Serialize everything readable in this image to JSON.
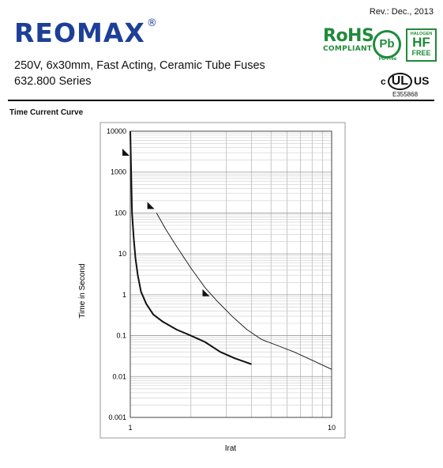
{
  "header": {
    "revision": "Rev.: Dec., 2013",
    "brand": "REOMAX",
    "brand_mark": "®",
    "title_line1": "250V, 6x30mm, Fast Acting, Ceramic Tube Fuses",
    "title_line2": "632.800   Series",
    "section_title": "Time Current Curve"
  },
  "certifications": {
    "rohs": "RoHS",
    "rohs_sub": "COMPLIANT",
    "pb": "Pb",
    "pb_sub": "Pb-Free",
    "hf_top": "HALOGEN",
    "hf_mid": "HF",
    "hf_bot": "FREE",
    "ul_c": "c",
    "ul_mark": "UL",
    "ul_us": "US",
    "ul_file": "E355868",
    "color": "#1f8a3a"
  },
  "chart_data": {
    "type": "line",
    "xscale": "log",
    "yscale": "log",
    "xlim": [
      1,
      10
    ],
    "ylim": [
      0.001,
      10000
    ],
    "xlabel": "Irat",
    "ylabel": "Time in Second",
    "x_ticks": [
      "1",
      "10"
    ],
    "y_ticks": [
      "0.001",
      "0.01",
      "0.1",
      "1",
      "10",
      "100",
      "1000",
      "10000"
    ],
    "grid": true,
    "series": [
      {
        "style": "thick",
        "x": [
          1.0,
          1.01,
          1.02,
          1.04,
          1.06,
          1.09,
          1.13,
          1.2,
          1.3,
          1.45,
          1.7,
          2.0,
          2.35,
          2.8,
          3.3,
          4.0
        ],
        "y": [
          10000,
          1000,
          100,
          25,
          8,
          3,
          1.2,
          0.6,
          0.33,
          0.22,
          0.14,
          0.1,
          0.07,
          0.04,
          0.028,
          0.02
        ]
      },
      {
        "style": "thin",
        "x": [
          1.35,
          1.5,
          1.7,
          2.0,
          2.35,
          2.7,
          3.2,
          3.8,
          4.5,
          5.5,
          6.5,
          8.0,
          10.0
        ],
        "y": [
          100,
          40,
          15,
          4.5,
          1.5,
          0.7,
          0.3,
          0.14,
          0.08,
          0.055,
          0.04,
          0.025,
          0.015
        ]
      }
    ],
    "markers": [
      {
        "x": 1.0,
        "y": 3000,
        "direction": "right"
      },
      {
        "x": 1.33,
        "y": 150,
        "direction": "right"
      },
      {
        "x": 2.5,
        "y": 1.1,
        "direction": "right"
      }
    ]
  }
}
